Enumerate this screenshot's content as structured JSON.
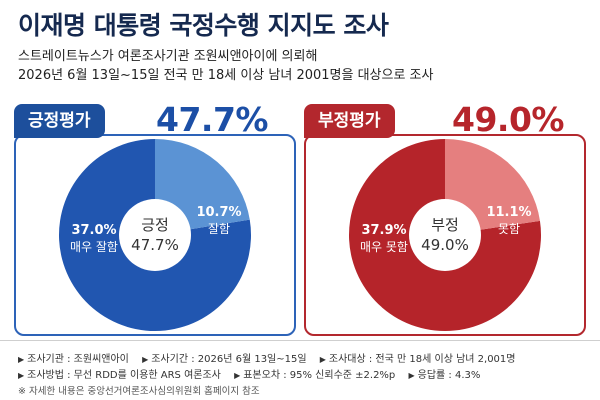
{
  "header": {
    "title": "이재명 대통령 국정수행 지지도 조사",
    "subtitle1": "스트레이트뉴스가 여론조사기관 조원씨앤아이에 의뢰해",
    "subtitle2": "2026년 6월 13일~15일 전국 만 18세 이상 남녀 2001명을 대상으로 조사"
  },
  "positive": {
    "tag": "긍정평가",
    "total": "47.7%",
    "center_label": "긍정",
    "center_value": "47.7%",
    "seg_strong_value": "37.0%",
    "seg_strong_label": "매우 잘함",
    "seg_mild_value": "10.7%",
    "seg_mild_label": "잘함"
  },
  "negative": {
    "tag": "부정평가",
    "total": "49.0%",
    "center_label": "부정",
    "center_value": "49.0%",
    "seg_strong_value": "37.9%",
    "seg_strong_label": "매우 못함",
    "seg_mild_value": "11.1%",
    "seg_mild_label": "못함"
  },
  "footer": {
    "agency": "조사기관 : 조원씨앤아이",
    "period": "조사기간 : 2026년 6월 13일~15일",
    "target": "조사대상 : 전국 만 18세 이상 남녀 2,001명",
    "method": "조사방법 : 무선 RDD를 이용한 ARS 여론조사",
    "error": "표본오차 : 95% 신뢰수준 ±2.2%p",
    "response": "응답률 : 4.3%",
    "note": "※ 자세한 내용은 중앙선거여론조사심의위원회 홈페이지 참조"
  },
  "colors": {
    "pos_strong": "#2156b0",
    "pos_mild": "#5b93d4",
    "neg_strong": "#b5242a",
    "neg_mild": "#e57f7f"
  },
  "chart_data": [
    {
      "type": "pie",
      "categories": [
        "매우 잘함",
        "잘함"
      ],
      "values": [
        37.0,
        10.7
      ],
      "title": "긍정평가"
    },
    {
      "type": "pie",
      "categories": [
        "매우 못함",
        "못함"
      ],
      "values": [
        37.9,
        11.1
      ],
      "title": "부정평가"
    }
  ]
}
